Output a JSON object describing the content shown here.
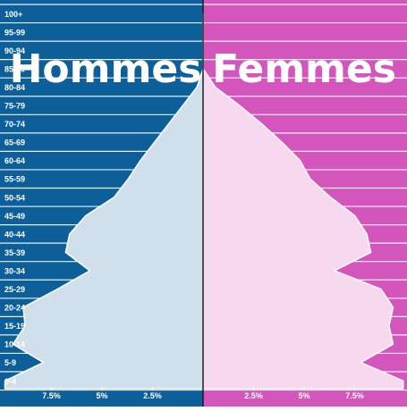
{
  "chart_data": {
    "type": "area",
    "orientation": "horizontal-pyramid",
    "left_title": "Hommes",
    "right_title": "Femmes",
    "categories": [
      "0-4",
      "5-9",
      "10-14",
      "15-19",
      "20-24",
      "25-29",
      "30-34",
      "35-39",
      "40-44",
      "45-49",
      "50-54",
      "55-59",
      "60-64",
      "65-69",
      "70-74",
      "75-79",
      "80-84",
      "85-89",
      "90-94",
      "95-99",
      "100+"
    ],
    "series": [
      {
        "name": "Hommes",
        "side": "left",
        "values": [
          9.8,
          7.9,
          9.4,
          8.8,
          8.9,
          7.2,
          5.6,
          6.8,
          6.6,
          5.8,
          4.4,
          3.7,
          3.1,
          2.4,
          1.7,
          1.0,
          0.3,
          0,
          0,
          0,
          0
        ]
      },
      {
        "name": "Femmes",
        "side": "right",
        "values": [
          9.9,
          7.8,
          9.4,
          9.2,
          9.4,
          8.8,
          6.5,
          8.3,
          8.1,
          7.5,
          6.3,
          5.3,
          4.8,
          3.9,
          2.9,
          1.8,
          0.6,
          0,
          0,
          0,
          0
        ]
      }
    ],
    "x_ticks": {
      "left": [
        {
          "value": 7.5,
          "label": "7.5%"
        },
        {
          "value": 5,
          "label": "5%"
        },
        {
          "value": 2.5,
          "label": "2.5%"
        }
      ],
      "right": [
        {
          "value": 2.5,
          "label": "2.5%"
        },
        {
          "value": 5,
          "label": "5%"
        },
        {
          "value": 7.5,
          "label": "7.5%"
        }
      ]
    },
    "xlim": [
      0,
      10
    ],
    "grid": true,
    "colors": {
      "left_background": "#0d5f9a",
      "right_background": "#d455bb",
      "left_fill": "#cfe0ec",
      "right_fill": "#f6d8ef",
      "grid": "#ffffff",
      "center_line": "#1a1a1a"
    }
  }
}
